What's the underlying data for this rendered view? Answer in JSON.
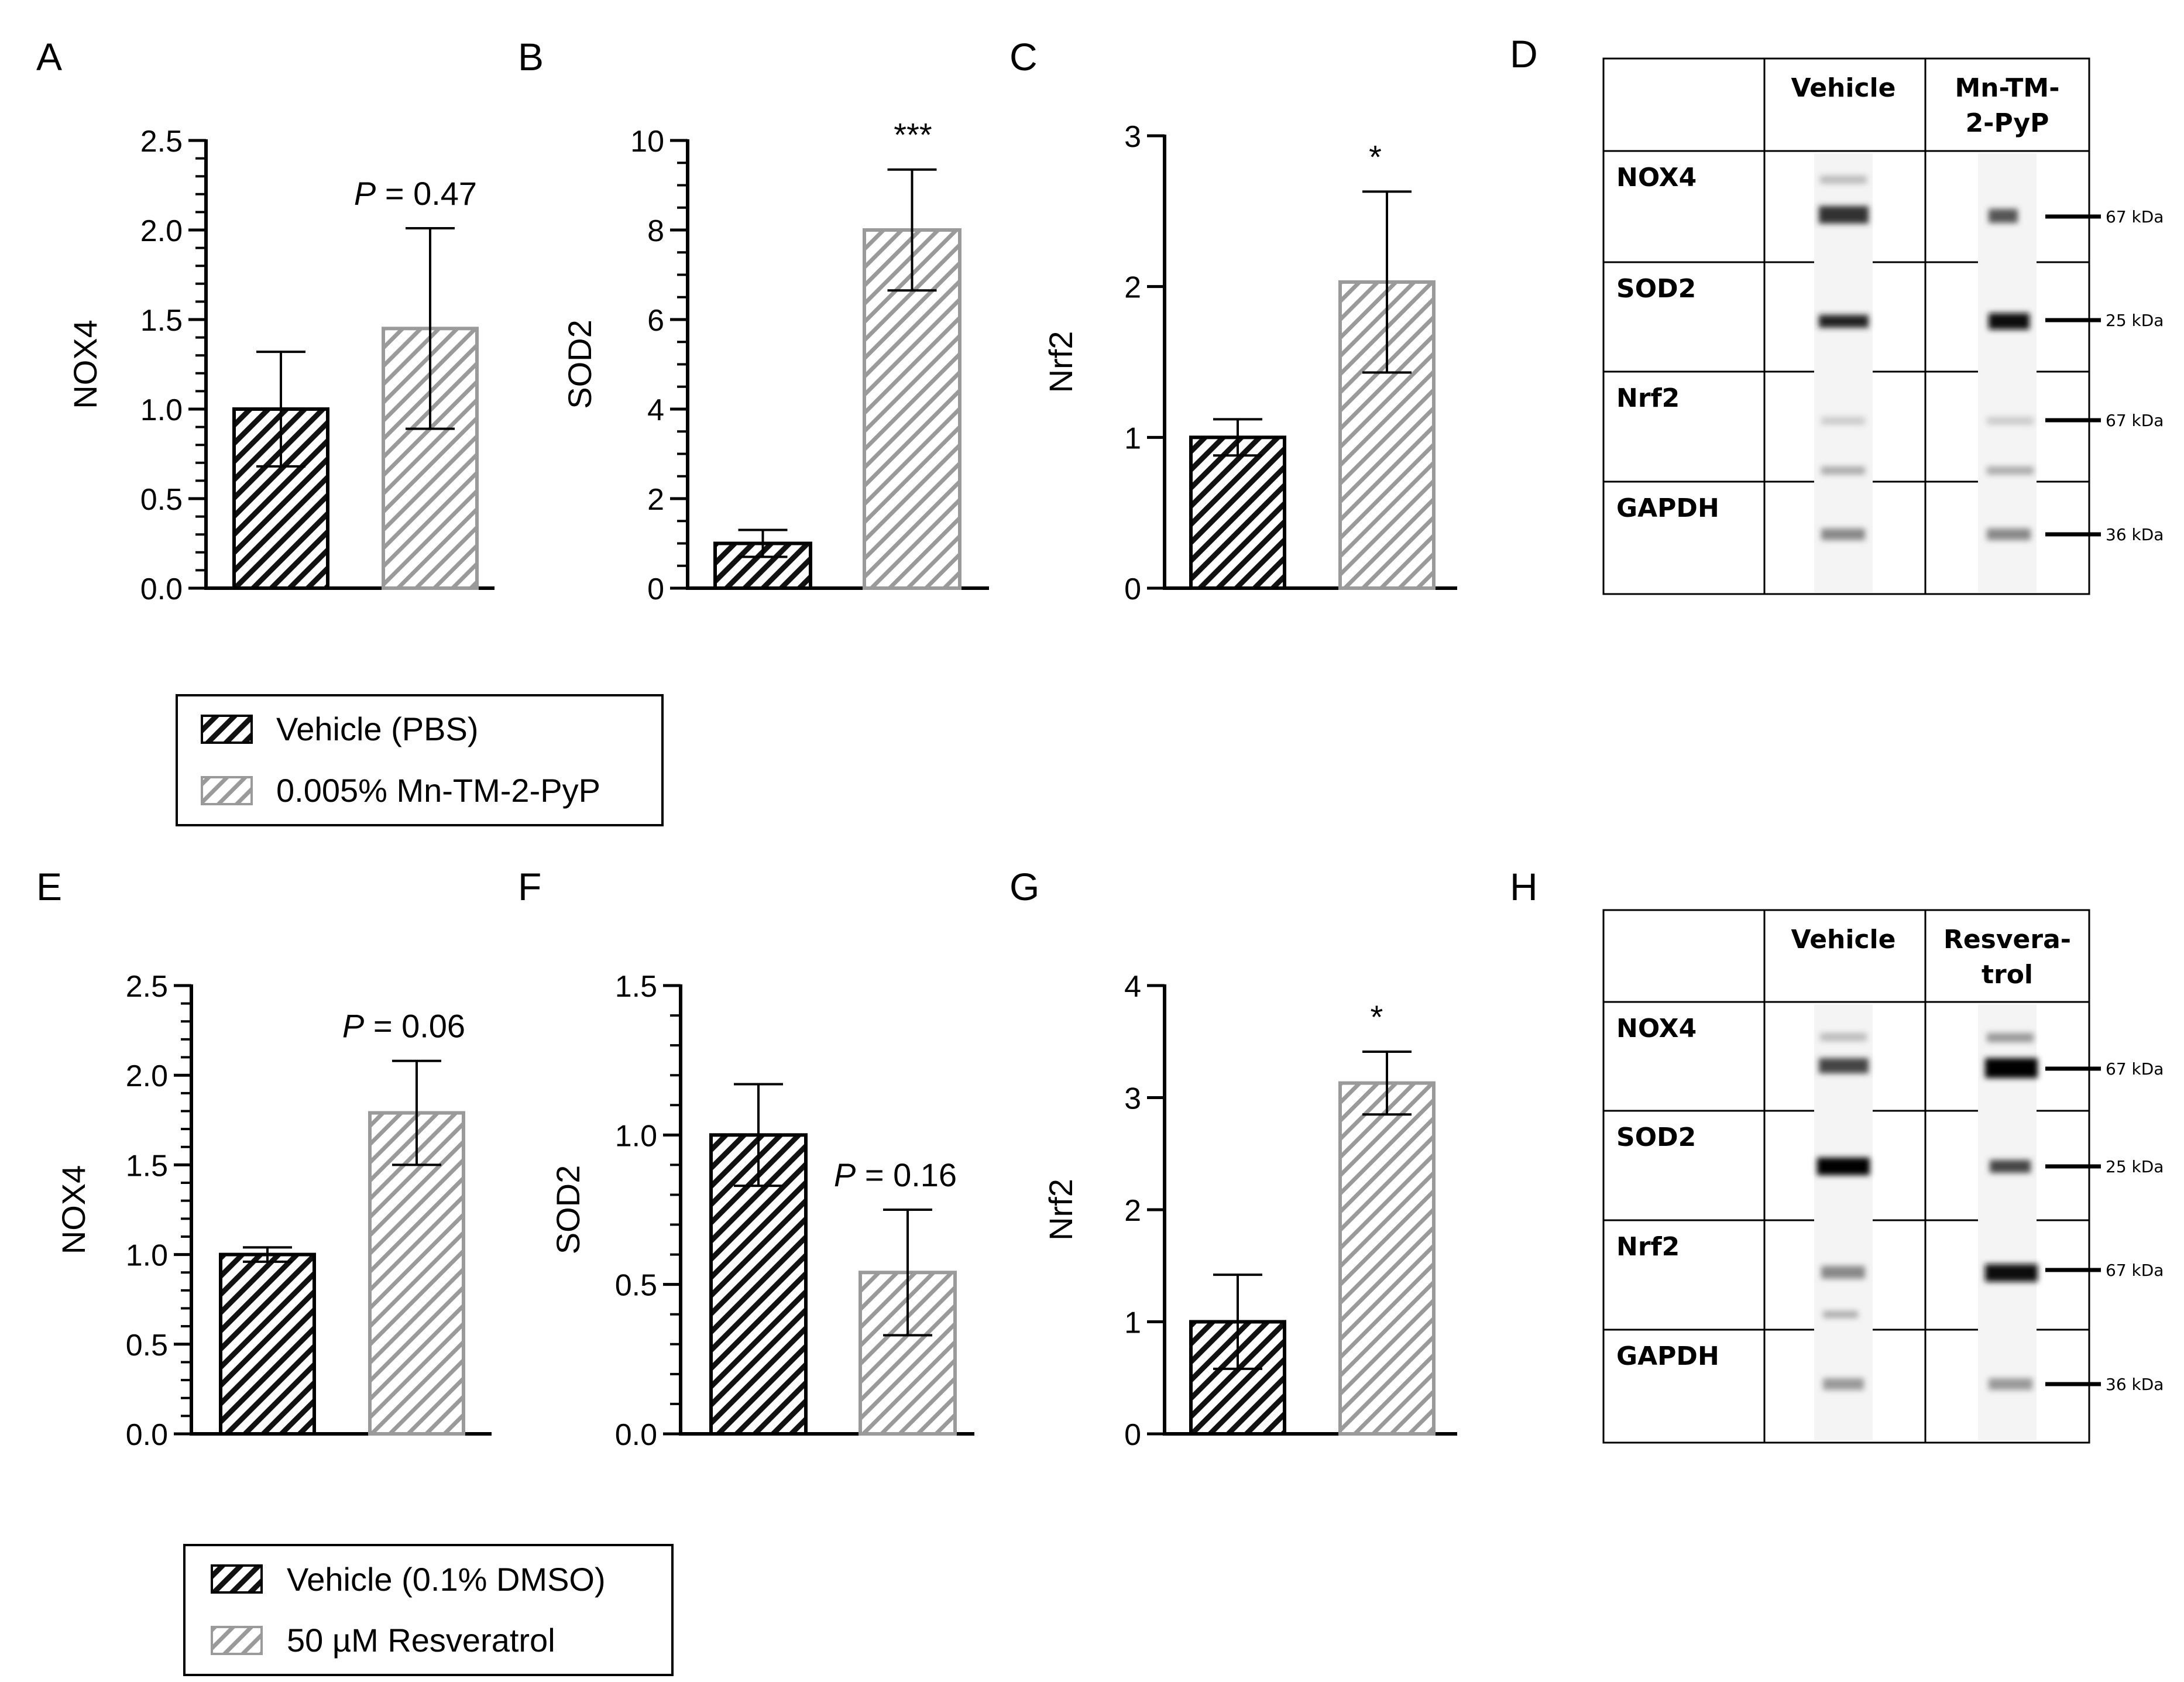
{
  "chart_data": [
    {
      "panel": "A",
      "type": "bar",
      "ylabel": "NOX4",
      "ylim": [
        0,
        2.5
      ],
      "ticks": [
        "0.0",
        "0.5",
        "1.0",
        "1.5",
        "2.0",
        "2.5"
      ],
      "tick_values": [
        0,
        0.5,
        1,
        1.5,
        2,
        2.5
      ],
      "minor_step": 0.1,
      "categories": [
        "Vehicle (PBS)",
        "0.005% Mn-TM-2-PyP"
      ],
      "values": [
        1.0,
        1.45
      ],
      "errors": [
        0.32,
        0.56
      ],
      "annotation": {
        "prefix": "P",
        "text": " = 0.47"
      }
    },
    {
      "panel": "B",
      "type": "bar",
      "ylabel": "SOD2",
      "ylim": [
        0,
        10
      ],
      "ticks": [
        "0",
        "2",
        "4",
        "6",
        "8",
        "10"
      ],
      "tick_values": [
        0,
        2,
        4,
        6,
        8,
        10
      ],
      "minor_step": 0.5,
      "categories": [
        "Vehicle (PBS)",
        "0.005% Mn-TM-2-PyP"
      ],
      "values": [
        1.0,
        8.0
      ],
      "errors": [
        0.3,
        1.35
      ],
      "annotation": {
        "prefix": "",
        "text": "***"
      }
    },
    {
      "panel": "C",
      "type": "bar",
      "ylabel": "Nrf2",
      "ylim": [
        0,
        3
      ],
      "ticks": [
        "0",
        "1",
        "2",
        "3"
      ],
      "tick_values": [
        0,
        1,
        2,
        3
      ],
      "minor_step": 0,
      "categories": [
        "Vehicle (PBS)",
        "0.005% Mn-TM-2-PyP"
      ],
      "values": [
        1.0,
        2.03
      ],
      "errors": [
        0.12,
        0.6
      ],
      "annotation": {
        "prefix": "",
        "text": "*"
      }
    },
    {
      "panel": "E",
      "type": "bar",
      "ylabel": "NOX4",
      "ylim": [
        0,
        2.5
      ],
      "ticks": [
        "0.0",
        "0.5",
        "1.0",
        "1.5",
        "2.0",
        "2.5"
      ],
      "tick_values": [
        0,
        0.5,
        1,
        1.5,
        2,
        2.5
      ],
      "minor_step": 0.1,
      "categories": [
        "Vehicle (0.1% DMSO)",
        "50 µM Resveratrol"
      ],
      "values": [
        1.0,
        1.79
      ],
      "errors": [
        0.04,
        0.29
      ],
      "annotation": {
        "prefix": "P",
        "text": " = 0.06"
      }
    },
    {
      "panel": "F",
      "type": "bar",
      "ylabel": "SOD2",
      "ylim": [
        0,
        1.5
      ],
      "ticks": [
        "0.0",
        "0.5",
        "1.0",
        "1.5"
      ],
      "tick_values": [
        0,
        0.5,
        1,
        1.5
      ],
      "minor_step": 0.1,
      "categories": [
        "Vehicle (0.1% DMSO)",
        "50 µM Resveratrol"
      ],
      "values": [
        1.0,
        0.54
      ],
      "errors": [
        0.17,
        0.21
      ],
      "annotation": {
        "prefix": "P",
        "text": " = 0.16"
      }
    },
    {
      "panel": "G",
      "type": "bar",
      "ylabel": "Nrf2",
      "ylim": [
        0,
        4
      ],
      "ticks": [
        "0",
        "1",
        "2",
        "3",
        "4"
      ],
      "tick_values": [
        0,
        1,
        2,
        3,
        4
      ],
      "minor_step": 0,
      "categories": [
        "Vehicle (0.1% DMSO)",
        "50 µM Resveratrol"
      ],
      "values": [
        1.0,
        3.13
      ],
      "errors": [
        0.42,
        0.28
      ],
      "annotation": {
        "prefix": "*",
        "text": ""
      }
    }
  ],
  "legend_top": {
    "items": [
      "Vehicle (PBS)",
      "0.005% Mn-TM-2-PyP"
    ]
  },
  "legend_bottom": {
    "items": [
      "Vehicle (0.1% DMSO)",
      "50 µM Resveratrol"
    ]
  },
  "blots": [
    {
      "panel": "D",
      "col1": "Vehicle",
      "col2_line1": "Mn-TM-",
      "col2_line2": "2-PyP",
      "rows": [
        "NOX4",
        "SOD2",
        "Nrf2",
        "GAPDH"
      ],
      "kda": [
        "67 kDa",
        "25 kDa",
        "67 kDa",
        "36 kDa"
      ]
    },
    {
      "panel": "H",
      "col1": "Vehicle",
      "col2_line1": "Resvera-",
      "col2_line2": "trol",
      "rows": [
        "NOX4",
        "SOD2",
        "Nrf2",
        "GAPDH"
      ],
      "kda": [
        "67 kDa",
        "25 kDa",
        "67 kDa",
        "36 kDa"
      ]
    }
  ],
  "colors": {
    "dark_bar": "#000000",
    "light_bar": "#9a9a9a",
    "axis": "#000000"
  }
}
